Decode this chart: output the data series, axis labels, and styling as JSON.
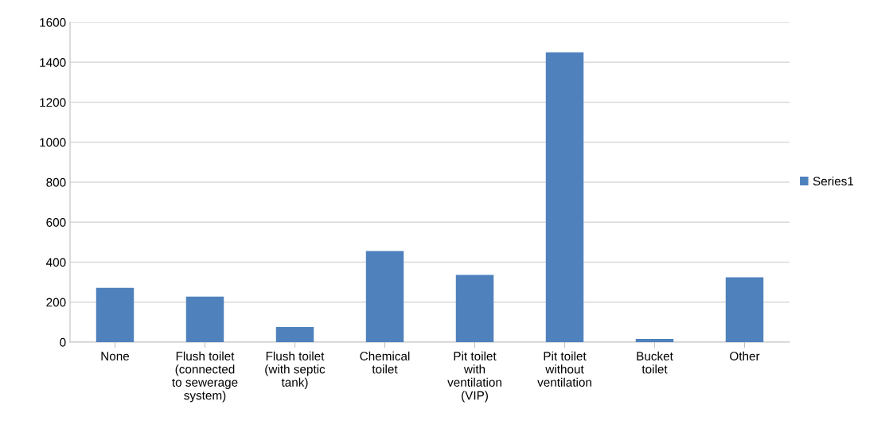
{
  "chart_data": {
    "type": "bar",
    "categories": [
      "None",
      "Flush toilet\n(connected\nto sewerage\nsystem)",
      "Flush toilet\n(with septic\ntank)",
      "Chemical\ntoilet",
      "Pit toilet\nwith\nventilation\n(VIP)",
      "Pit toilet\nwithout\nventilation",
      "Bucket\ntoilet",
      "Other"
    ],
    "series": [
      {
        "name": "Series1",
        "color": "#4f81bd",
        "values": [
          272,
          228,
          76,
          456,
          336,
          1450,
          16,
          324
        ]
      }
    ],
    "ylim": [
      0,
      1600
    ],
    "yticks": [
      0,
      200,
      400,
      600,
      800,
      1000,
      1200,
      1400,
      1600
    ],
    "grid": "y",
    "legend": "right"
  }
}
